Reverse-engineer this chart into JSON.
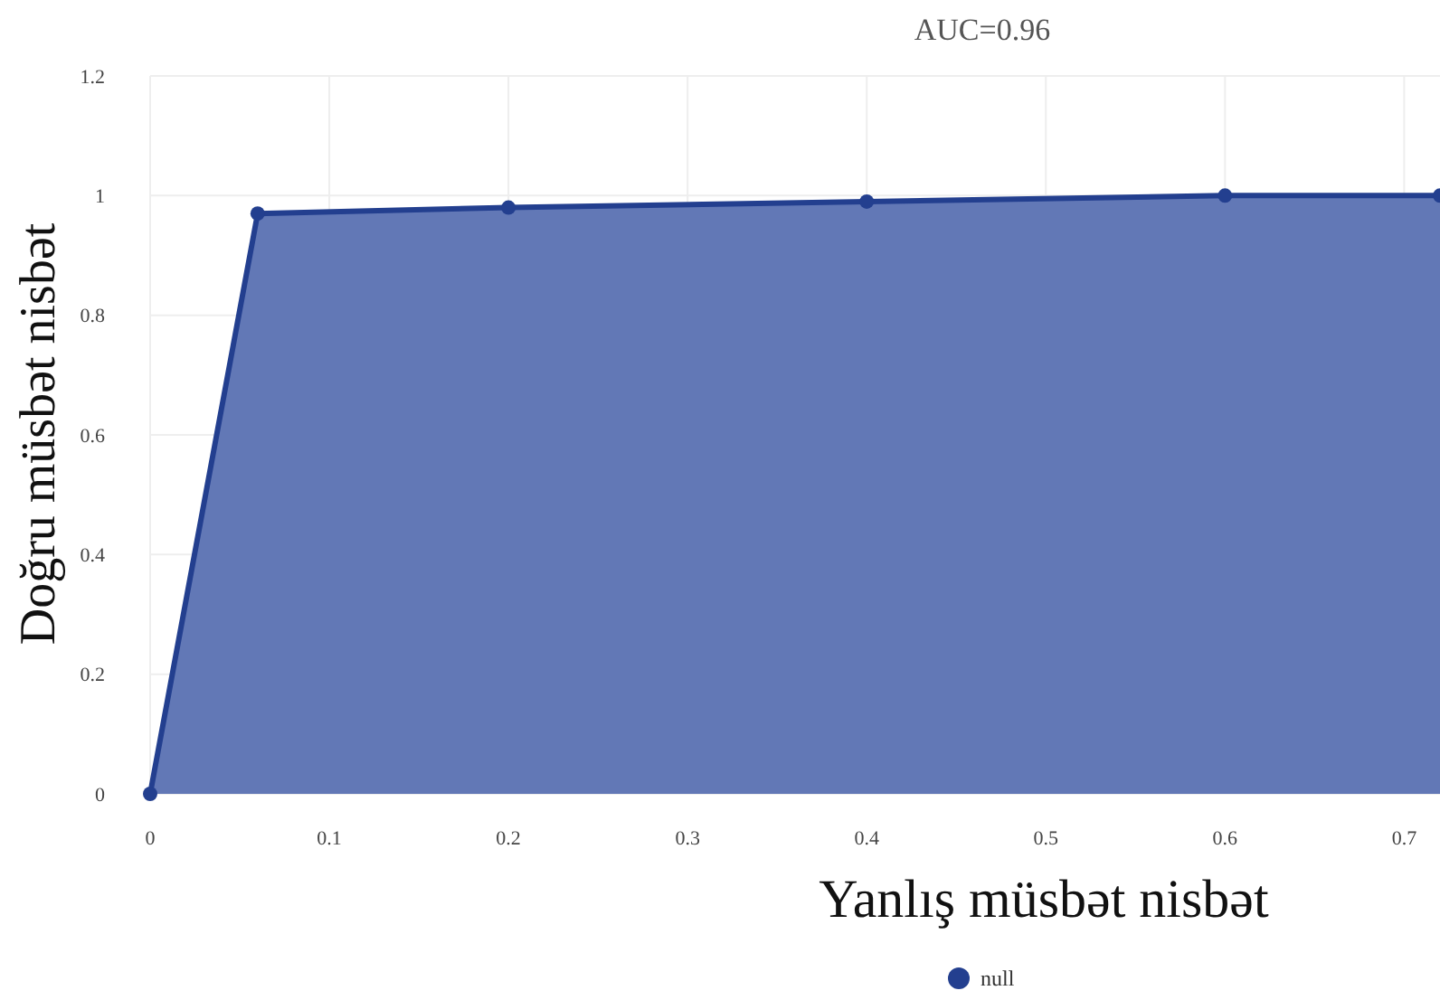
{
  "chart_data": {
    "type": "area",
    "title": "AUC=0.96",
    "xlabel": "Yanlış müsbət nisbət",
    "ylabel": "Doğru müsbət nisbət",
    "x": [
      0,
      0.06,
      0.2,
      0.4,
      0.6,
      0.72
    ],
    "series": [
      {
        "name": "null",
        "color": "#233f8f",
        "values": [
          0,
          0.97,
          0.98,
          0.99,
          1.0,
          1.0
        ]
      }
    ],
    "xlim": [
      0,
      0.72
    ],
    "xticks": [
      0,
      0.1,
      0.2,
      0.3,
      0.4,
      0.5,
      0.6,
      0.7
    ],
    "ylim": [
      0,
      1.2
    ],
    "yticks": [
      0,
      0.2,
      0.4,
      0.6,
      0.8,
      1,
      1.2
    ],
    "grid": true,
    "legend": "bottom",
    "marker": "circle"
  }
}
